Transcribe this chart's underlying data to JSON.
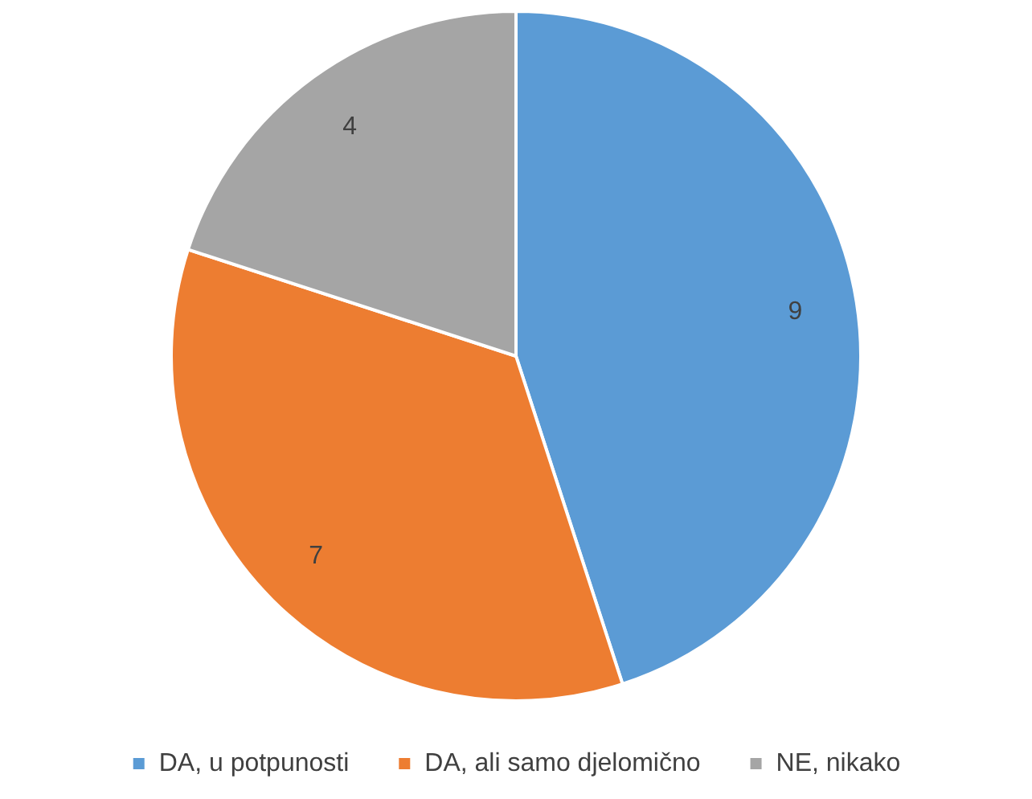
{
  "chart_data": {
    "type": "pie",
    "categories": [
      "DA, u potpunosti",
      "DA, ali samo djelomično",
      "NE, nikako"
    ],
    "values": [
      9,
      7,
      4
    ],
    "colors": [
      "#5b9bd5",
      "#ed7d31",
      "#a5a5a5"
    ],
    "data_labels": true,
    "legend": "bottom"
  }
}
